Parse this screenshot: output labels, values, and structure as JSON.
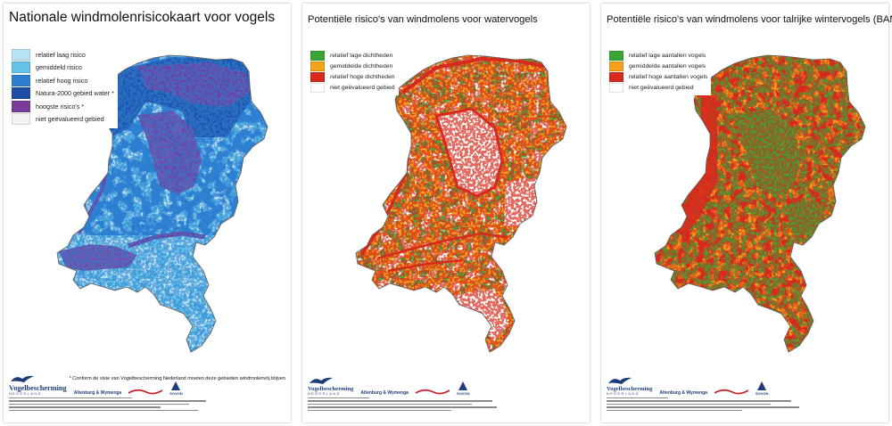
{
  "maps": [
    {
      "title": "Nationale windmolenrisicokaart voor vogels",
      "legend": [
        {
          "label": "relatief laag risico",
          "color": "#b7e4f3"
        },
        {
          "label": "gemiddeld risico",
          "color": "#64c2e8"
        },
        {
          "label": "relatief hoog risico",
          "color": "#2d7fd1"
        },
        {
          "label": "Natura-2000 gebied water *",
          "color": "#1d4fa8"
        },
        {
          "label": "hoogste risico's *",
          "color": "#7a3c9c"
        },
        {
          "label": "niet geëvalueerd gebied",
          "color": "#f2f2f2"
        }
      ],
      "footnote": "* Conform de visie van Vogelbescherming Nederland moeten deze gebieden windmolenvrij blijven"
    },
    {
      "title": "Potentiële risico's van windmolens voor watervogels",
      "legend": [
        {
          "label": "relatief lage dichtheden",
          "color": "#3aa535"
        },
        {
          "label": "gemiddelde dichtheden",
          "color": "#f2a21b"
        },
        {
          "label": "relatief hoge dichtheden",
          "color": "#d8291f"
        },
        {
          "label": "niet geëvalueerd gebied",
          "color": "#ffffff"
        }
      ]
    },
    {
      "title": "Potentiële risico's van windmolens voor talrijke wintervogels (BAMBAS)",
      "legend": [
        {
          "label": "relatief lage aantallen vogels",
          "color": "#3aa535"
        },
        {
          "label": "gemiddelde aantallen vogels",
          "color": "#f2a21b"
        },
        {
          "label": "relatief hoge aantallen vogels",
          "color": "#d8291f"
        },
        {
          "label": "niet geëvalueerd gebied",
          "color": "#ffffff"
        }
      ]
    }
  ],
  "logos": {
    "vogelbescherming": "Vogelbescherming",
    "vogelbescherming_sub": "NEDERLAND",
    "altenburg": "Altenburg & Wymenga",
    "sovon": "SOVON"
  },
  "colors": {
    "outline": "#5a5a5a",
    "risk_map": {
      "low": "#b7e4f3",
      "mid": "#64c2e8",
      "high": "#2d7fd1",
      "natura": "#1d4fa8",
      "highest": "#7a3c9c"
    },
    "density": {
      "low": "#3aa535",
      "mid": "#f2a21b",
      "high": "#d8291f"
    }
  }
}
